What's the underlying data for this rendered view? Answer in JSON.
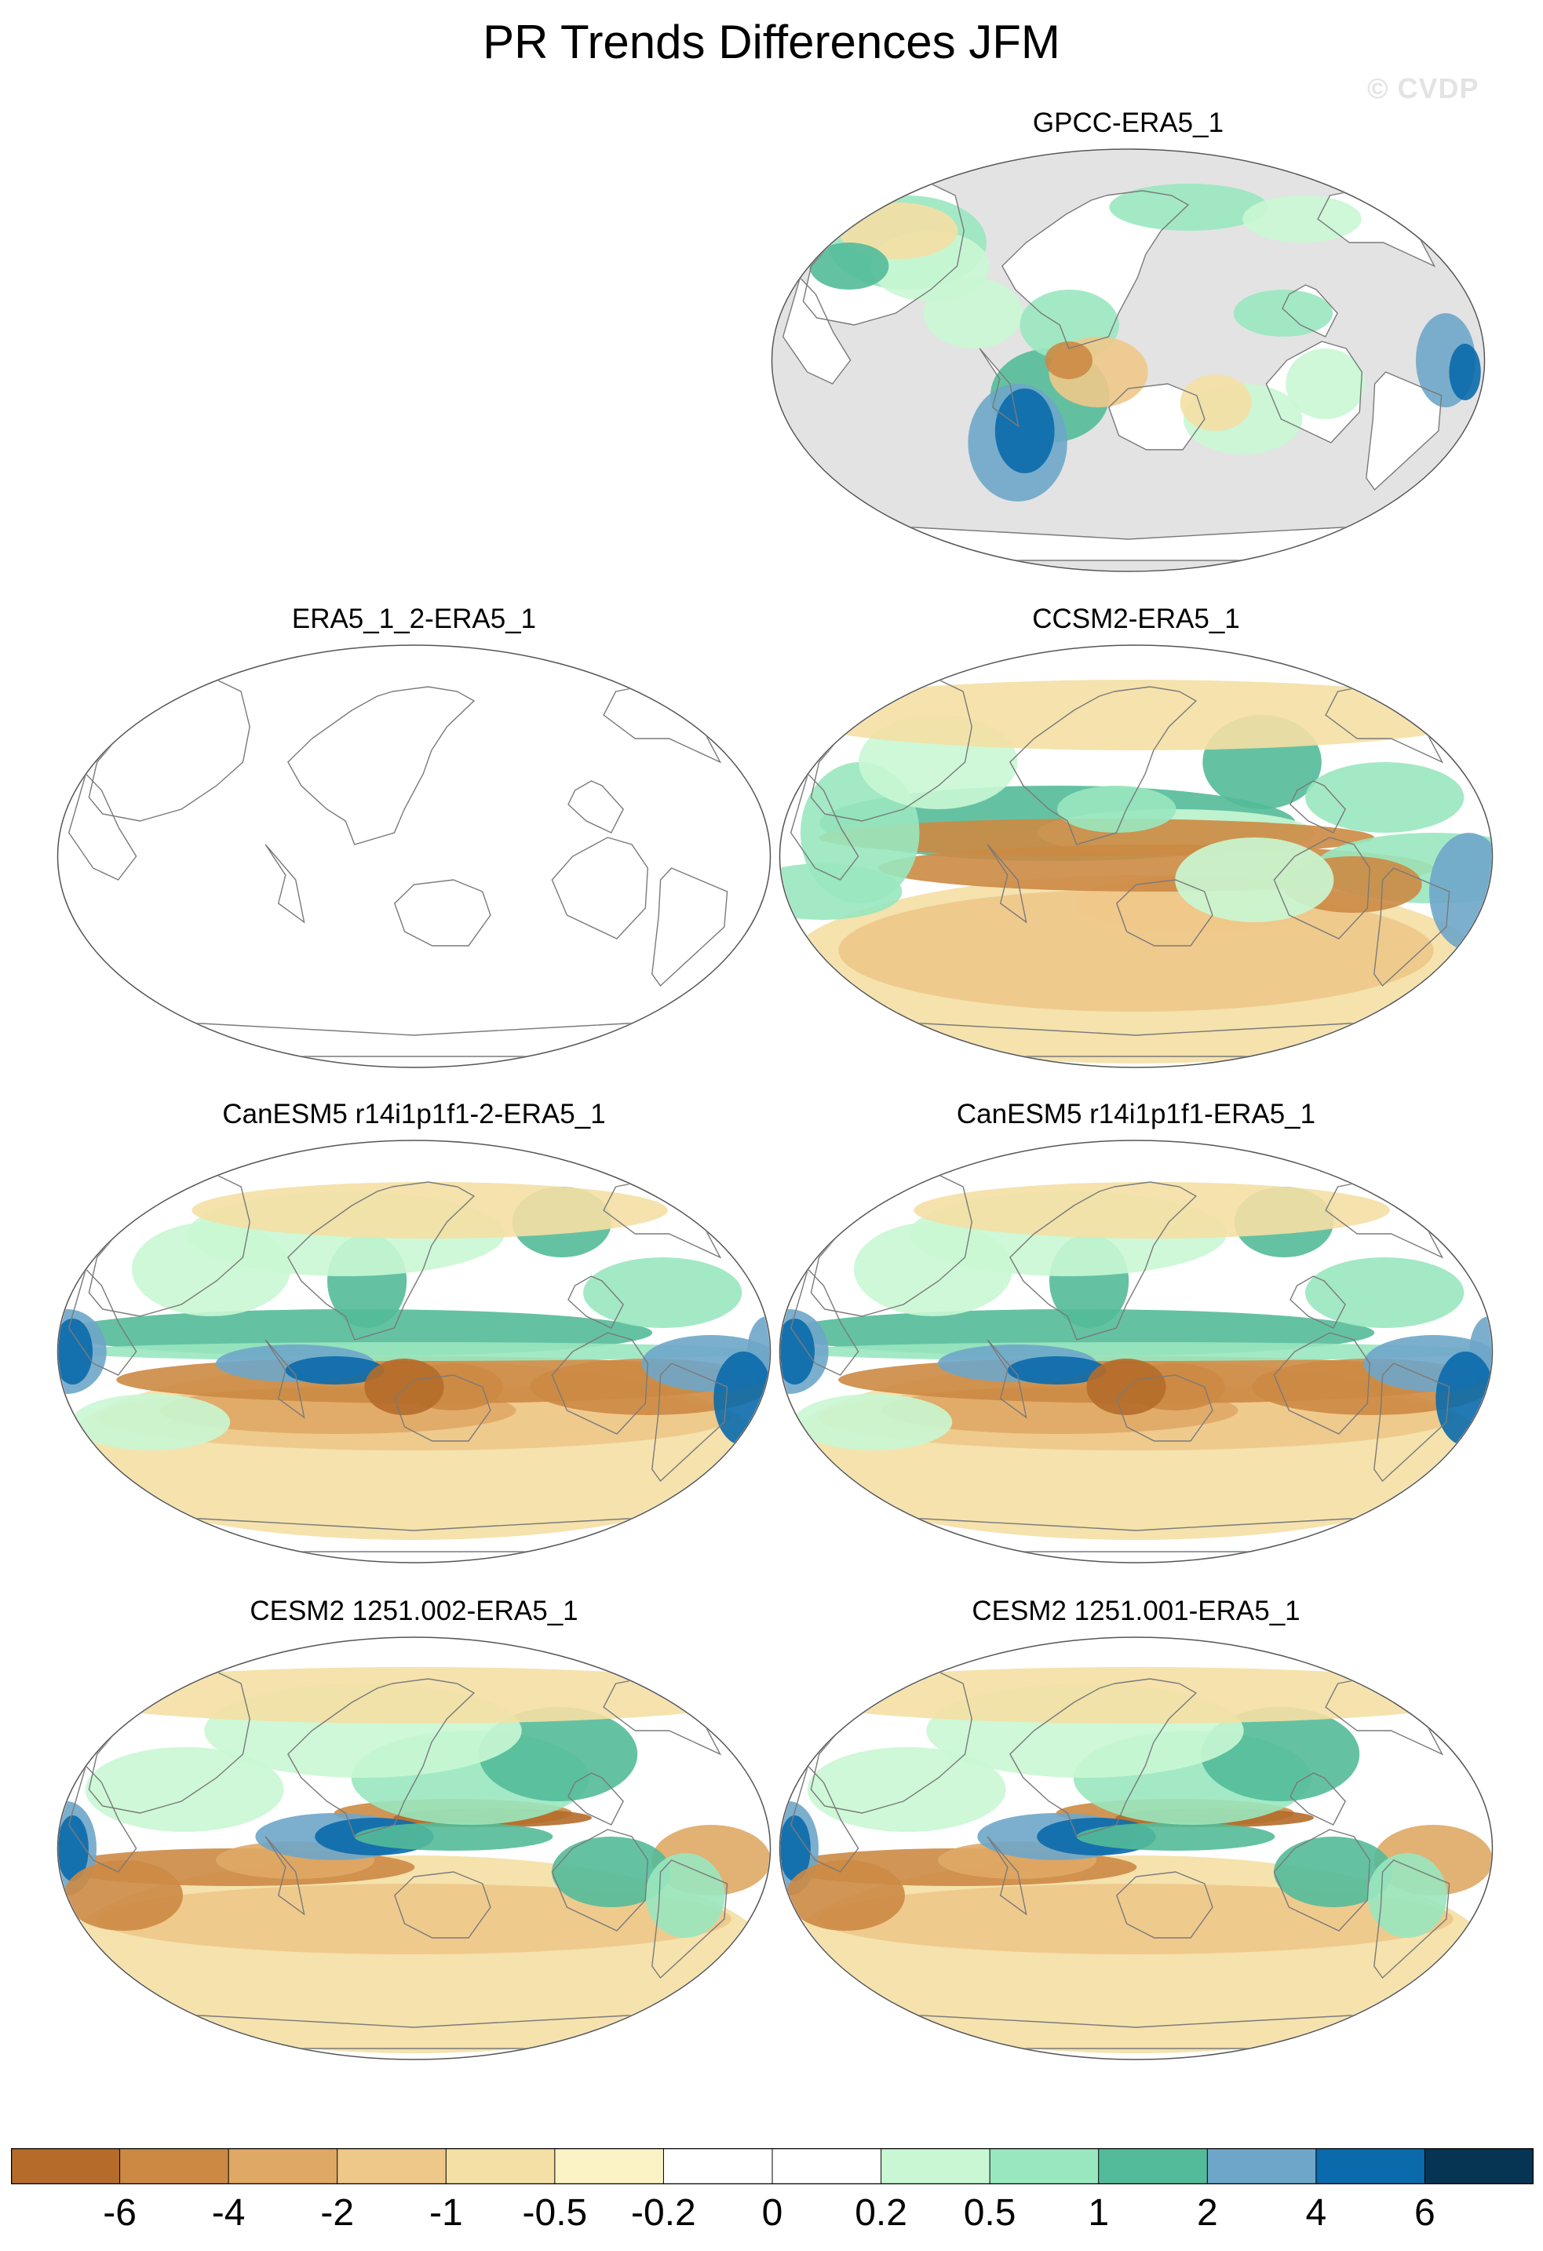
{
  "title": "PR Trends Differences JFM",
  "watermark": "© CVDP",
  "panels": [
    {
      "title": "GPCC-ERA5_1",
      "variant": "obs"
    },
    {
      "title": "ERA5_1_2-ERA5_1",
      "variant": "blank"
    },
    {
      "title": "CCSM2-ERA5_1",
      "variant": "ccsm2"
    },
    {
      "title": "CanESM5 r14i1p1f1-2-ERA5_1",
      "variant": "canesm"
    },
    {
      "title": "CanESM5 r14i1p1f1-ERA5_1",
      "variant": "canesm"
    },
    {
      "title": "CESM2 1251.002-ERA5_1",
      "variant": "cesm2"
    },
    {
      "title": "CESM2 1251.001-ERA5_1",
      "variant": "cesm2"
    }
  ],
  "colorbar": {
    "labels": [
      "-6",
      "-4",
      "-2",
      "-1",
      "-0.5",
      "-0.2",
      "0",
      "0.2",
      "0.5",
      "1",
      "2",
      "4",
      "6"
    ],
    "colors": [
      "#b56b2a",
      "#cc8944",
      "#dfa865",
      "#eec889",
      "#f4dfa4",
      "#fbf2c6",
      "#ffffff",
      "#ffffff",
      "#c9f7d3",
      "#99e7bf",
      "#53bb99",
      "#6ea6c9",
      "#0a6aab",
      "#053552"
    ]
  },
  "palette": {
    "land_mask": "#e3e3e3",
    "coast": "#7a7a7a",
    "outline": "#555555"
  }
}
